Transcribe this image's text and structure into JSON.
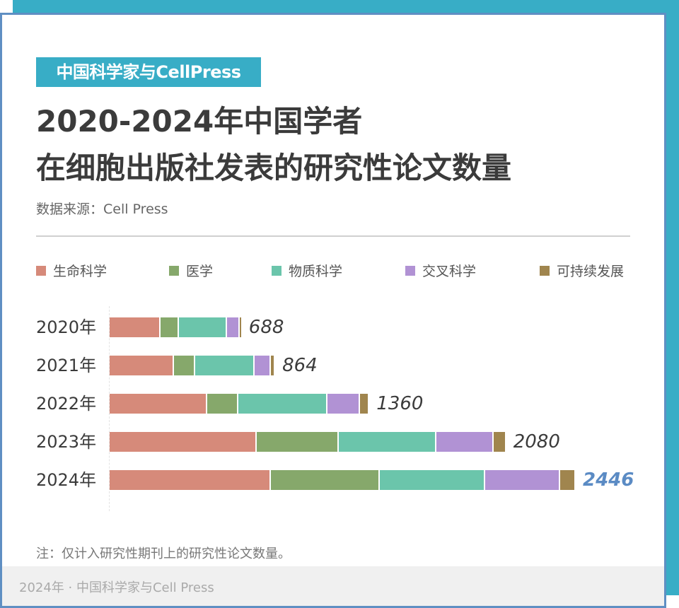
{
  "brand_tag": "中国科学家与CellPress",
  "title": {
    "line1": "2020-2024年中国学者",
    "line2": "在细胞出版社发表的研究性论文数量"
  },
  "source": "数据来源：Cell Press",
  "legend": [
    {
      "label": "生命科学",
      "color": "#d68a7a"
    },
    {
      "label": "医学",
      "color": "#86a86b"
    },
    {
      "label": "物质科学",
      "color": "#6bc5ab"
    },
    {
      "label": "交叉科学",
      "color": "#b192d4"
    },
    {
      "label": "可持续发展",
      "color": "#a0854e"
    }
  ],
  "rows": [
    {
      "year": "2020年",
      "total": "688"
    },
    {
      "year": "2021年",
      "total": "864"
    },
    {
      "year": "2022年",
      "total": "1360"
    },
    {
      "year": "2023年",
      "total": "2080"
    },
    {
      "year": "2024年",
      "total": "2446"
    }
  ],
  "note": "注：仅计入研究性期刊上的研究性论文数量。",
  "footer": "2024年 · 中国科学家与Cell Press",
  "colors": {
    "brand_teal": "#38adc6",
    "border_blue": "#5f8fc3",
    "highlight_blue": "#5b8bc4",
    "title_text": "#3b3b3b"
  },
  "chart_data": {
    "type": "bar",
    "orientation": "horizontal",
    "stacked": true,
    "title": "2020-2024年中国学者在细胞出版社发表的研究性论文数量",
    "subtitle": "数据来源：Cell Press",
    "categories": [
      "2020年",
      "2021年",
      "2022年",
      "2023年",
      "2024年"
    ],
    "series": [
      {
        "name": "生命科学",
        "color": "#d68a7a",
        "values": [
          268,
          339,
          515,
          776,
          850
        ]
      },
      {
        "name": "医学",
        "color": "#86a86b",
        "values": [
          97,
          112,
          164,
          429,
          574
        ]
      },
      {
        "name": "物质科学",
        "color": "#6bc5ab",
        "values": [
          252,
          313,
          466,
          515,
          552
        ]
      },
      {
        "name": "交叉科学",
        "color": "#b192d4",
        "values": [
          68,
          85,
          174,
          300,
          395
        ]
      },
      {
        "name": "可持续发展",
        "color": "#a0854e",
        "values": [
          3,
          15,
          41,
          60,
          75
        ]
      }
    ],
    "totals": [
      688,
      864,
      1360,
      2080,
      2446
    ],
    "xlabel": "",
    "ylabel": "",
    "xlim": [
      0,
      2446
    ],
    "grid": false,
    "legend_position": "top",
    "annotation": "注：仅计入研究性期刊上的研究性论文数量。"
  }
}
